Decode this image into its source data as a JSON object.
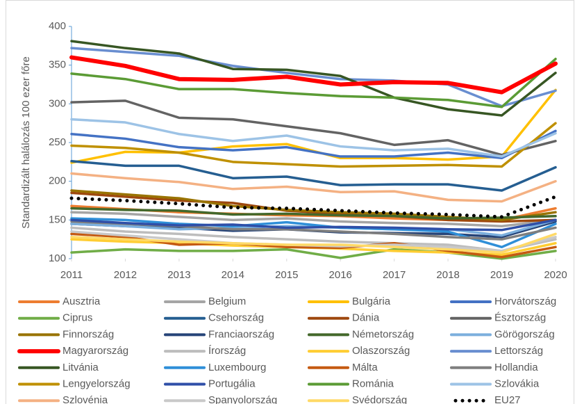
{
  "chart_data": {
    "type": "line",
    "y_label": "Standardizált halálozás 100 ezer főre",
    "x": [
      2011,
      2012,
      2013,
      2014,
      2015,
      2016,
      2017,
      2018,
      2019,
      2020
    ],
    "xlim": [
      2011,
      2020
    ],
    "xticks": [
      2011,
      2012,
      2013,
      2014,
      2015,
      2016,
      2017,
      2018,
      2019,
      2020
    ],
    "ylim": [
      100,
      400
    ],
    "yticks": [
      100,
      150,
      200,
      250,
      300,
      350,
      400
    ],
    "grid": false,
    "legend": "bottom",
    "series": [
      {
        "name": "Ausztria",
        "color": "#ED7D31",
        "values": [
          168,
          164,
          160,
          158,
          156,
          155,
          152,
          150,
          150,
          165
        ]
      },
      {
        "name": "Belgium",
        "color": "#A5A5A5",
        "values": [
          160,
          158,
          154,
          150,
          152,
          148,
          146,
          145,
          142,
          150
        ]
      },
      {
        "name": "Bulgária",
        "color": "#FFC000",
        "values": [
          224,
          238,
          237,
          245,
          248,
          230,
          230,
          228,
          232,
          318
        ]
      },
      {
        "name": "Horvátország",
        "color": "#4472C4",
        "values": [
          261,
          255,
          244,
          240,
          244,
          232,
          232,
          237,
          230,
          265
        ]
      },
      {
        "name": "Ciprus",
        "color": "#70AD47",
        "values": [
          108,
          112,
          110,
          110,
          112,
          101,
          112,
          108,
          100,
          110
        ]
      },
      {
        "name": "Csehország",
        "color": "#255E91",
        "values": [
          226,
          220,
          220,
          204,
          206,
          195,
          196,
          196,
          188,
          218
        ]
      },
      {
        "name": "Dánia",
        "color": "#9E480E",
        "values": [
          185,
          180,
          175,
          172,
          162,
          158,
          155,
          150,
          148,
          150
        ]
      },
      {
        "name": "Észtország",
        "color": "#636363",
        "values": [
          302,
          304,
          282,
          280,
          271,
          262,
          247,
          253,
          234,
          252
        ]
      },
      {
        "name": "Finnország",
        "color": "#997300",
        "values": [
          188,
          183,
          178,
          168,
          163,
          160,
          158,
          154,
          150,
          160
        ]
      },
      {
        "name": "Franciaország",
        "color": "#264478",
        "values": [
          145,
          142,
          140,
          136,
          138,
          134,
          133,
          132,
          128,
          148
        ]
      },
      {
        "name": "Németország",
        "color": "#43682B",
        "values": [
          165,
          163,
          162,
          157,
          158,
          156,
          155,
          152,
          153,
          155
        ]
      },
      {
        "name": "Görögország",
        "color": "#7CAFDD",
        "values": [
          145,
          142,
          138,
          140,
          142,
          140,
          138,
          138,
          130,
          150
        ]
      },
      {
        "name": "Magyarország",
        "color": "#FF0000",
        "values": [
          360,
          349,
          332,
          331,
          335,
          325,
          328,
          327,
          315,
          352
        ]
      },
      {
        "name": "Írország",
        "color": "#BDBDBD",
        "values": [
          140,
          135,
          132,
          128,
          125,
          122,
          120,
          118,
          110,
          125
        ]
      },
      {
        "name": "Olaszország",
        "color": "#FFCD33",
        "values": [
          125,
          122,
          120,
          117,
          115,
          113,
          110,
          108,
          105,
          120
        ]
      },
      {
        "name": "Lettország",
        "color": "#698ED0",
        "values": [
          372,
          367,
          362,
          349,
          340,
          332,
          330,
          325,
          297,
          317
        ]
      },
      {
        "name": "Litvánia",
        "color": "#375623",
        "values": [
          381,
          372,
          365,
          345,
          344,
          336,
          308,
          293,
          285,
          340
        ]
      },
      {
        "name": "Luxembourg",
        "color": "#2F8FD8",
        "values": [
          152,
          150,
          145,
          142,
          147,
          140,
          138,
          135,
          115,
          145
        ]
      },
      {
        "name": "Málta",
        "color": "#C55A11",
        "values": [
          132,
          128,
          118,
          120,
          115,
          114,
          120,
          110,
          102,
          115
        ]
      },
      {
        "name": "Hollandia",
        "color": "#7F7F7F",
        "values": [
          148,
          145,
          142,
          138,
          138,
          135,
          132,
          128,
          125,
          140
        ]
      },
      {
        "name": "Lengyelország",
        "color": "#BF9000",
        "values": [
          246,
          243,
          237,
          225,
          222,
          219,
          220,
          221,
          219,
          275
        ]
      },
      {
        "name": "Portugália",
        "color": "#2F4FA8",
        "values": [
          150,
          146,
          143,
          144,
          140,
          141,
          140,
          138,
          137,
          150
        ]
      },
      {
        "name": "Románia",
        "color": "#5B9B35",
        "values": [
          339,
          332,
          319,
          319,
          314,
          310,
          308,
          305,
          296,
          358
        ]
      },
      {
        "name": "Szlovákia",
        "color": "#9DC3E6",
        "values": [
          280,
          276,
          261,
          252,
          259,
          245,
          240,
          242,
          232,
          262
        ]
      },
      {
        "name": "Szlovénia",
        "color": "#F4B183",
        "values": [
          210,
          204,
          199,
          190,
          193,
          186,
          187,
          176,
          174,
          200
        ]
      },
      {
        "name": "Spanyolország",
        "color": "#C9C9C9",
        "values": [
          135,
          130,
          125,
          120,
          118,
          116,
          118,
          115,
          110,
          128
        ]
      },
      {
        "name": "Svédország",
        "color": "#FFD966",
        "values": [
          128,
          125,
          122,
          120,
          118,
          118,
          115,
          112,
          108,
          132
        ]
      },
      {
        "name": "EU27",
        "color": "#000000",
        "dotted": true,
        "values": [
          178,
          175,
          171,
          166,
          165,
          162,
          159,
          157,
          154,
          180
        ]
      }
    ]
  }
}
